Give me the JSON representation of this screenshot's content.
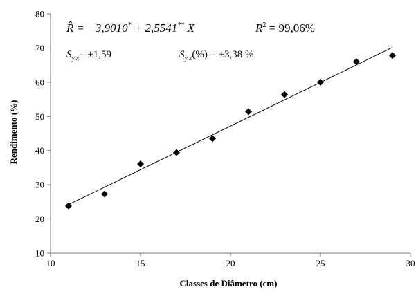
{
  "chart_data": {
    "type": "scatter",
    "title": "",
    "xlabel": "Classes de Diâmetro (cm)",
    "ylabel": "Rendimento (%)",
    "xlim": [
      10,
      30
    ],
    "ylim": [
      10,
      80
    ],
    "xticks": [
      10,
      15,
      20,
      25,
      30
    ],
    "yticks": [
      10,
      20,
      30,
      40,
      50,
      60,
      70,
      80
    ],
    "grid": false,
    "legend": "none",
    "marker": "diamond",
    "marker_color": "#000000",
    "series": [
      {
        "x": [
          11,
          13,
          15,
          17,
          19,
          21,
          23,
          25,
          27,
          29
        ],
        "y": [
          23.8,
          27.3,
          36.1,
          39.4,
          43.5,
          51.4,
          56.4,
          60.0,
          66.0,
          67.8
        ]
      }
    ],
    "trendline": {
      "type": "linear",
      "intercept": -3.901,
      "slope": 2.5541,
      "x_range": [
        11,
        29
      ]
    },
    "annotations": {
      "equation_lhs": "R̂ = −3,9010",
      "equation_sup1": "*",
      "equation_mid": " + 2,5541",
      "equation_sup2": "**",
      "equation_rhs": " X",
      "r2_label": "R",
      "r2_sup": "2",
      "r2_value": " = 99,06%",
      "syx_label": "S",
      "syx_sub": "y.x",
      "syx_value": "= ±1,59",
      "syx_pct_label": "S",
      "syx_pct_sub": "y.x",
      "syx_pct_value": "(%) = ±3,38 %"
    }
  }
}
